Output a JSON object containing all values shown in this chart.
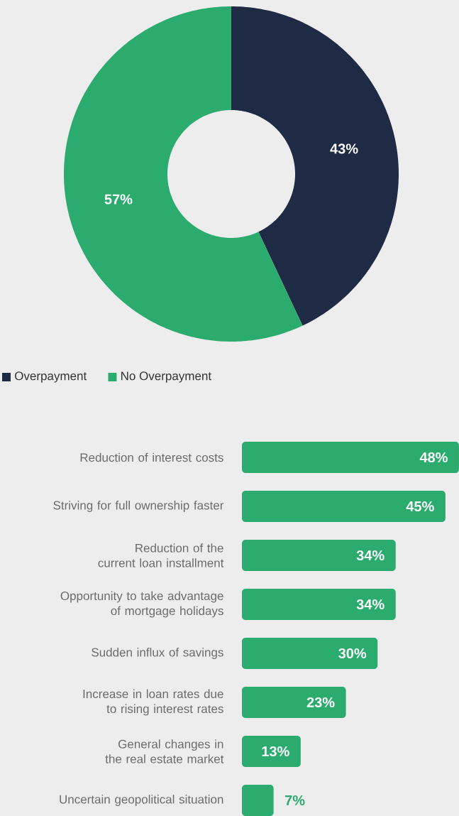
{
  "chart_data": [
    {
      "type": "donut",
      "categories": [
        "Overpayment",
        "No Overpayment"
      ],
      "values": [
        43,
        57
      ],
      "colors": [
        "#1f2a44",
        "#2bac6e"
      ],
      "value_labels": [
        "43%",
        "57%"
      ],
      "legend": "bottom left"
    },
    {
      "type": "bar",
      "orientation": "horizontal",
      "color": "#2bac6e",
      "categories": [
        "Reduction of interest costs",
        "Striving for full ownership faster",
        "Reduction of the current loan installment",
        "Opportunity to take advantage of mortgage holidays",
        "Sudden influx of savings",
        "Increase in loan rates due to rising interest rates",
        "General changes in the real estate market",
        "Uncertain geopolitical situation"
      ],
      "values": [
        48,
        45,
        34,
        34,
        30,
        23,
        13,
        7
      ],
      "value_labels": [
        "48%",
        "45%",
        "34%",
        "34%",
        "30%",
        "23%",
        "13%",
        "7%"
      ]
    }
  ]
}
